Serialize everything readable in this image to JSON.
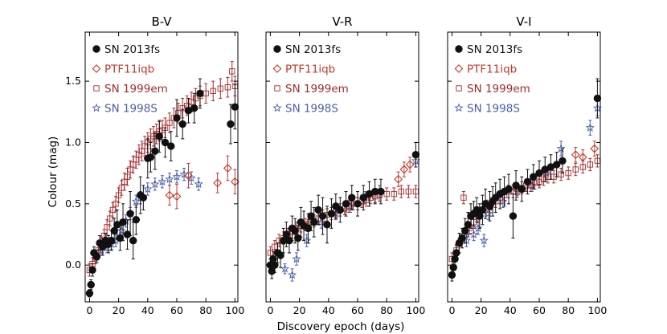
{
  "figure": {
    "ylabel": "Colour (mag)",
    "xlabel": "Discovery epoch (days)"
  },
  "chart_data": [
    {
      "type": "scatter",
      "title": "B-V",
      "xlabel": "Discovery epoch (days)",
      "ylabel": "Colour (mag)",
      "xlim": [
        -3,
        102
      ],
      "ylim": [
        -0.3,
        1.9
      ],
      "xticks": [
        0,
        20,
        40,
        60,
        80,
        100
      ],
      "yticks": [
        0.0,
        0.5,
        1.0,
        1.5
      ],
      "legend": [
        "SN 2013fs",
        "PTF11iqb",
        "SN 1999em",
        "SN 1998S"
      ],
      "legend_position": "top-left",
      "series": [
        {
          "name": "SN 2013fs",
          "marker": "filled-circle",
          "color": "#111111",
          "x": [
            0,
            1,
            2,
            3,
            5,
            7,
            9,
            11,
            13,
            15,
            17,
            19,
            21,
            23,
            26,
            28,
            30,
            32,
            35,
            37,
            40,
            42,
            45,
            48,
            52,
            56,
            60,
            64,
            68,
            72,
            76,
            97,
            100
          ],
          "y": [
            -0.23,
            -0.16,
            -0.04,
            0.1,
            0.07,
            0.18,
            0.15,
            0.2,
            0.17,
            0.2,
            0.28,
            0.33,
            0.22,
            0.35,
            0.25,
            0.42,
            0.2,
            0.37,
            0.57,
            0.55,
            0.87,
            0.88,
            0.93,
            1.05,
            1.0,
            0.97,
            1.2,
            1.15,
            1.26,
            1.28,
            1.4,
            1.15,
            1.29
          ],
          "yerr": [
            0.03,
            0.04,
            0.05,
            0.05,
            0.05,
            0.06,
            0.07,
            0.06,
            0.07,
            0.08,
            0.1,
            0.12,
            0.1,
            0.15,
            0.12,
            0.18,
            0.15,
            0.12,
            0.15,
            0.1,
            0.16,
            0.12,
            0.15,
            0.13,
            0.12,
            0.12,
            0.15,
            0.12,
            0.1,
            0.12,
            0.12,
            0.16,
            0.18
          ]
        },
        {
          "name": "PTF11iqb",
          "marker": "open-diamond",
          "color": "#c0392b",
          "x": [
            55,
            60,
            68,
            88,
            95,
            100
          ],
          "y": [
            0.57,
            0.56,
            0.73,
            0.67,
            0.79,
            0.68
          ],
          "yerr": [
            0.08,
            0.1,
            0.1,
            0.08,
            0.1,
            0.1
          ]
        },
        {
          "name": "SN 1999em",
          "marker": "open-square",
          "color": "#a52a2a",
          "x": [
            0,
            2,
            4,
            6,
            8,
            10,
            12,
            14,
            16,
            18,
            20,
            22,
            24,
            26,
            28,
            30,
            32,
            34,
            36,
            38,
            40,
            42,
            44,
            46,
            48,
            50,
            52,
            55,
            58,
            61,
            64,
            67,
            70,
            73,
            76,
            80,
            85,
            90,
            95,
            98,
            100
          ],
          "y": [
            -0.04,
            0.01,
            0.06,
            0.12,
            0.18,
            0.24,
            0.31,
            0.38,
            0.45,
            0.5,
            0.57,
            0.63,
            0.68,
            0.72,
            0.78,
            0.82,
            0.86,
            0.9,
            0.93,
            0.97,
            1.0,
            1.03,
            1.05,
            1.07,
            1.09,
            1.1,
            1.12,
            1.16,
            1.2,
            1.24,
            1.28,
            1.3,
            1.33,
            1.36,
            1.38,
            1.4,
            1.42,
            1.44,
            1.45,
            1.58,
            1.46
          ],
          "yerr": [
            0.05,
            0.05,
            0.05,
            0.05,
            0.05,
            0.05,
            0.06,
            0.06,
            0.06,
            0.06,
            0.06,
            0.06,
            0.07,
            0.07,
            0.07,
            0.07,
            0.07,
            0.08,
            0.08,
            0.08,
            0.08,
            0.08,
            0.08,
            0.08,
            0.08,
            0.08,
            0.08,
            0.08,
            0.08,
            0.08,
            0.08,
            0.08,
            0.08,
            0.08,
            0.08,
            0.08,
            0.08,
            0.08,
            0.08,
            0.08,
            0.08
          ]
        },
        {
          "name": "SN 1998S",
          "marker": "open-star",
          "color": "#4a5ea8",
          "x": [
            5,
            8,
            12,
            15,
            18,
            22,
            25,
            28,
            32,
            35,
            40,
            45,
            50,
            55,
            60,
            65,
            70,
            75
          ],
          "y": [
            0.07,
            0.12,
            0.14,
            0.17,
            0.2,
            0.28,
            0.36,
            0.42,
            0.52,
            0.55,
            0.62,
            0.66,
            0.68,
            0.7,
            0.72,
            0.74,
            0.71,
            0.66
          ],
          "yerr": [
            0.03,
            0.04,
            0.04,
            0.04,
            0.05,
            0.05,
            0.05,
            0.05,
            0.05,
            0.05,
            0.05,
            0.05,
            0.05,
            0.05,
            0.05,
            0.05,
            0.05,
            0.05
          ]
        }
      ]
    },
    {
      "type": "scatter",
      "title": "V-R",
      "xlabel": "Discovery epoch (days)",
      "ylabel": "Colour (mag)",
      "xlim": [
        -3,
        102
      ],
      "ylim": [
        -0.3,
        1.9
      ],
      "xticks": [
        0,
        20,
        40,
        60,
        80,
        100
      ],
      "yticks": [
        0.0,
        0.5,
        1.0,
        1.5
      ],
      "legend": [
        "SN 2013fs",
        "PTF11iqb",
        "SN 1999em",
        "SN 1998S"
      ],
      "legend_position": "top-left",
      "series": [
        {
          "name": "SN 2013fs",
          "marker": "filled-circle",
          "color": "#111111",
          "x": [
            0,
            1,
            2,
            3,
            5,
            7,
            9,
            11,
            13,
            15,
            17,
            19,
            21,
            23,
            26,
            28,
            30,
            33,
            36,
            39,
            42,
            45,
            48,
            52,
            56,
            60,
            64,
            68,
            72,
            76,
            100
          ],
          "y": [
            0.0,
            -0.05,
            0.05,
            0.0,
            0.1,
            0.08,
            0.2,
            0.25,
            0.2,
            0.3,
            0.28,
            0.22,
            0.35,
            0.32,
            0.3,
            0.4,
            0.35,
            0.45,
            0.4,
            0.33,
            0.42,
            0.48,
            0.45,
            0.5,
            0.55,
            0.5,
            0.55,
            0.58,
            0.6,
            0.6,
            0.9
          ],
          "yerr": [
            0.05,
            0.06,
            0.06,
            0.06,
            0.08,
            0.1,
            0.1,
            0.1,
            0.1,
            0.1,
            0.1,
            0.1,
            0.12,
            0.12,
            0.12,
            0.12,
            0.12,
            0.12,
            0.15,
            0.15,
            0.12,
            0.1,
            0.1,
            0.1,
            0.1,
            0.1,
            0.1,
            0.1,
            0.1,
            0.1,
            0.1
          ]
        },
        {
          "name": "PTF11iqb",
          "marker": "open-diamond",
          "color": "#c0392b",
          "x": [
            88,
            92,
            96
          ],
          "y": [
            0.7,
            0.78,
            0.82
          ],
          "yerr": [
            0.06,
            0.06,
            0.06
          ]
        },
        {
          "name": "SN 1999em",
          "marker": "open-square",
          "color": "#a52a2a",
          "x": [
            0,
            3,
            6,
            9,
            12,
            15,
            18,
            21,
            24,
            27,
            30,
            33,
            36,
            39,
            42,
            45,
            48,
            51,
            54,
            57,
            60,
            63,
            66,
            69,
            72,
            75,
            80,
            85,
            90,
            95,
            100
          ],
          "y": [
            0.1,
            0.15,
            0.2,
            0.22,
            0.25,
            0.27,
            0.3,
            0.32,
            0.33,
            0.35,
            0.36,
            0.38,
            0.4,
            0.41,
            0.42,
            0.44,
            0.45,
            0.46,
            0.48,
            0.5,
            0.5,
            0.52,
            0.53,
            0.55,
            0.56,
            0.57,
            0.58,
            0.58,
            0.6,
            0.6,
            0.6
          ],
          "yerr": [
            0.05,
            0.05,
            0.05,
            0.05,
            0.05,
            0.05,
            0.05,
            0.05,
            0.05,
            0.05,
            0.05,
            0.05,
            0.05,
            0.05,
            0.05,
            0.05,
            0.05,
            0.05,
            0.05,
            0.05,
            0.05,
            0.05,
            0.05,
            0.05,
            0.05,
            0.05,
            0.05,
            0.05,
            0.05,
            0.05,
            0.05
          ]
        },
        {
          "name": "SN 1998S",
          "marker": "open-star",
          "color": "#4a5ea8",
          "x": [
            10,
            15,
            18,
            25,
            35,
            45,
            55,
            65,
            75,
            100
          ],
          "y": [
            -0.03,
            -0.08,
            0.05,
            0.2,
            0.35,
            0.42,
            0.48,
            0.55,
            0.6,
            0.85
          ],
          "yerr": [
            0.04,
            0.05,
            0.05,
            0.05,
            0.05,
            0.05,
            0.05,
            0.05,
            0.05,
            0.05
          ]
        }
      ]
    },
    {
      "type": "scatter",
      "title": "V-I",
      "xlabel": "Discovery epoch (days)",
      "ylabel": "Colour (mag)",
      "xlim": [
        -3,
        102
      ],
      "ylim": [
        -0.3,
        1.9
      ],
      "xticks": [
        0,
        20,
        40,
        60,
        80,
        100
      ],
      "yticks": [
        0.0,
        0.5,
        1.0,
        1.5
      ],
      "legend": [
        "SN 2013fs",
        "PTF11iqb",
        "SN 1999em",
        "SN 1998S"
      ],
      "legend_position": "top-left",
      "series": [
        {
          "name": "SN 2013fs",
          "marker": "filled-circle",
          "color": "#111111",
          "x": [
            0,
            1,
            2,
            3,
            5,
            7,
            9,
            11,
            13,
            15,
            17,
            19,
            21,
            23,
            26,
            28,
            30,
            33,
            36,
            39,
            42,
            44,
            48,
            52,
            56,
            60,
            64,
            68,
            72,
            76,
            100
          ],
          "y": [
            -0.08,
            -0.02,
            0.05,
            0.1,
            0.18,
            0.22,
            0.28,
            0.33,
            0.4,
            0.42,
            0.45,
            0.4,
            0.45,
            0.5,
            0.48,
            0.52,
            0.55,
            0.58,
            0.6,
            0.62,
            0.4,
            0.65,
            0.62,
            0.68,
            0.72,
            0.75,
            0.78,
            0.8,
            0.82,
            0.85,
            1.36
          ],
          "yerr": [
            0.05,
            0.05,
            0.05,
            0.06,
            0.08,
            0.08,
            0.1,
            0.1,
            0.1,
            0.1,
            0.1,
            0.1,
            0.12,
            0.12,
            0.12,
            0.12,
            0.12,
            0.12,
            0.12,
            0.12,
            0.18,
            0.12,
            0.1,
            0.1,
            0.1,
            0.1,
            0.1,
            0.1,
            0.1,
            0.1,
            0.16
          ]
        },
        {
          "name": "PTF11iqb",
          "marker": "open-diamond",
          "color": "#c0392b",
          "x": [
            85,
            90,
            98
          ],
          "y": [
            0.9,
            0.88,
            0.95
          ],
          "yerr": [
            0.06,
            0.06,
            0.06
          ]
        },
        {
          "name": "SN 1999em",
          "marker": "open-square",
          "color": "#a52a2a",
          "x": [
            0,
            3,
            6,
            8,
            12,
            15,
            18,
            21,
            24,
            27,
            30,
            33,
            36,
            39,
            42,
            45,
            48,
            51,
            54,
            57,
            60,
            63,
            66,
            70,
            75,
            80,
            85,
            90,
            95,
            100
          ],
          "y": [
            0.05,
            0.12,
            0.2,
            0.55,
            0.3,
            0.35,
            0.4,
            0.45,
            0.48,
            0.5,
            0.52,
            0.55,
            0.57,
            0.6,
            0.6,
            0.62,
            0.63,
            0.65,
            0.65,
            0.67,
            0.68,
            0.7,
            0.72,
            0.72,
            0.74,
            0.75,
            0.78,
            0.8,
            0.82,
            0.85
          ],
          "yerr": [
            0.05,
            0.05,
            0.05,
            0.05,
            0.05,
            0.05,
            0.05,
            0.05,
            0.05,
            0.05,
            0.05,
            0.05,
            0.05,
            0.05,
            0.05,
            0.05,
            0.05,
            0.05,
            0.05,
            0.05,
            0.05,
            0.05,
            0.05,
            0.05,
            0.05,
            0.05,
            0.05,
            0.05,
            0.05,
            0.05
          ]
        },
        {
          "name": "SN 1998S",
          "marker": "open-star",
          "color": "#4a5ea8",
          "x": [
            10,
            15,
            18,
            22,
            25,
            35,
            45,
            55,
            65,
            75,
            95,
            100
          ],
          "y": [
            0.2,
            0.25,
            0.3,
            0.2,
            0.42,
            0.52,
            0.6,
            0.65,
            0.75,
            0.95,
            1.12,
            1.28
          ],
          "yerr": [
            0.05,
            0.05,
            0.05,
            0.05,
            0.05,
            0.05,
            0.05,
            0.05,
            0.05,
            0.06,
            0.06,
            0.06
          ]
        }
      ]
    }
  ]
}
